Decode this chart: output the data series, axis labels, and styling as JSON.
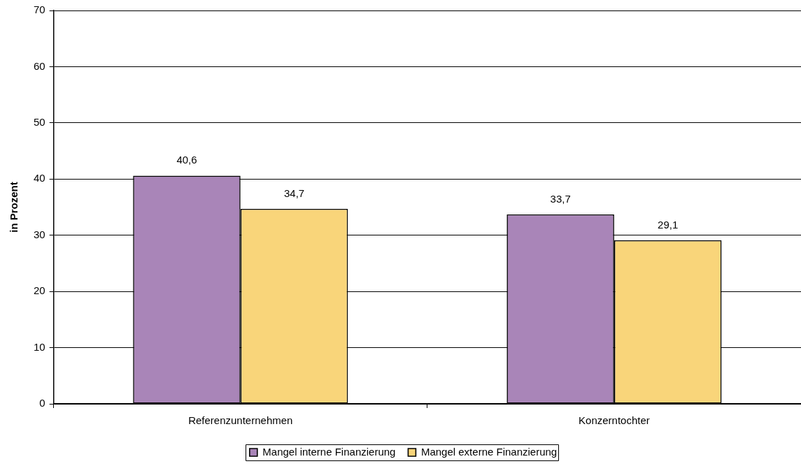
{
  "chart_data": {
    "type": "bar",
    "ylabel": "in Prozent",
    "categories": [
      "Referenzunternehmen",
      "Konzerntochter"
    ],
    "series": [
      {
        "name": "Mangel interne Finanzierung",
        "color": "#a985b8",
        "values": [
          40.6,
          33.7
        ],
        "value_labels": [
          "40,6",
          "33,7"
        ]
      },
      {
        "name": "Mangel externe Finanzierung",
        "color": "#f9d57a",
        "values": [
          34.7,
          29.1
        ],
        "value_labels": [
          "34,7",
          "29,1"
        ]
      }
    ],
    "ylim": [
      0,
      70
    ],
    "yticks": [
      0,
      10,
      20,
      30,
      40,
      50,
      60,
      70
    ],
    "grid": "y",
    "legend": "bottom"
  }
}
